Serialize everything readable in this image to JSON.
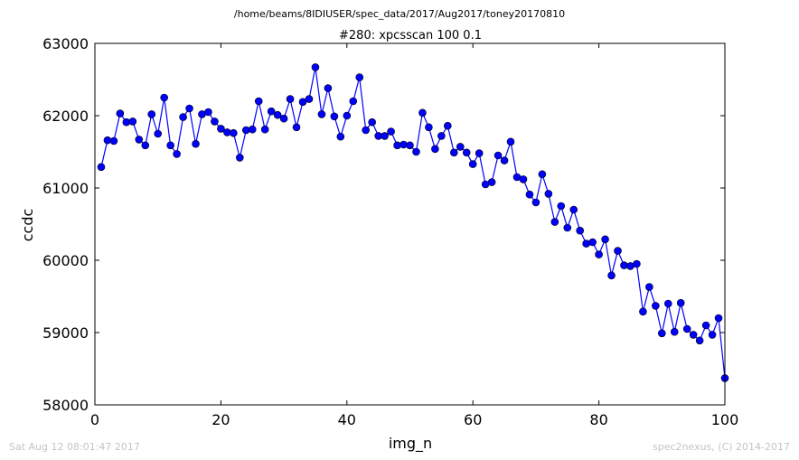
{
  "header": {
    "path": "/home/beams/8IDIUSER/spec_data/2017/Aug2017/toney20170810"
  },
  "footer": {
    "timestamp": "Sat Aug 12 08:01:47 2017",
    "credit": "spec2nexus, (C) 2014-2017"
  },
  "colors": {
    "series": "#0000ff"
  },
  "chart_data": {
    "type": "line",
    "title": "#280: xpcsscan 100 0.1",
    "xlabel": "img_n",
    "ylabel": "ccdc",
    "xlim": [
      0,
      100
    ],
    "ylim": [
      58000,
      63000
    ],
    "xticks": [
      0,
      20,
      40,
      60,
      80,
      100
    ],
    "yticks": [
      58000,
      59000,
      60000,
      61000,
      62000,
      63000
    ],
    "grid": false,
    "marker": "circle",
    "x": [
      1,
      2,
      3,
      4,
      5,
      6,
      7,
      8,
      9,
      10,
      11,
      12,
      13,
      14,
      15,
      16,
      17,
      18,
      19,
      20,
      21,
      22,
      23,
      24,
      25,
      26,
      27,
      28,
      29,
      30,
      31,
      32,
      33,
      34,
      35,
      36,
      37,
      38,
      39,
      40,
      41,
      42,
      43,
      44,
      45,
      46,
      47,
      48,
      49,
      50,
      51,
      52,
      53,
      54,
      55,
      56,
      57,
      58,
      59,
      60,
      61,
      62,
      63,
      64,
      65,
      66,
      67,
      68,
      69,
      70,
      71,
      72,
      73,
      74,
      75,
      76,
      77,
      78,
      79,
      80,
      81,
      82,
      83,
      84,
      85,
      86,
      87,
      88,
      89,
      90,
      91,
      92,
      93,
      94,
      95,
      96,
      97,
      98,
      99,
      100
    ],
    "y": [
      61290,
      61660,
      61650,
      62030,
      61910,
      61920,
      61670,
      61590,
      62020,
      61750,
      62250,
      61590,
      61470,
      61980,
      62100,
      61610,
      62020,
      62050,
      61920,
      61820,
      61770,
      61760,
      61420,
      61800,
      61810,
      62200,
      61810,
      62060,
      62010,
      61960,
      62230,
      61840,
      62190,
      62230,
      62670,
      62020,
      62380,
      61990,
      61710,
      62000,
      62200,
      62530,
      61800,
      61910,
      61720,
      61720,
      61780,
      61590,
      61600,
      61590,
      61500,
      62040,
      61840,
      61540,
      61720,
      61860,
      61490,
      61570,
      61490,
      61330,
      61480,
      61050,
      61080,
      61450,
      61380,
      61640,
      61150,
      61120,
      60910,
      60800,
      61190,
      60920,
      60530,
      60750,
      60450,
      60700,
      60410,
      60230,
      60250,
      60080,
      60290,
      59790,
      60130,
      59930,
      59920,
      59950,
      59290,
      59630,
      59370,
      58990,
      59400,
      59010,
      59410,
      59050,
      58970,
      58890,
      59100,
      58970,
      59200,
      58370
    ]
  }
}
